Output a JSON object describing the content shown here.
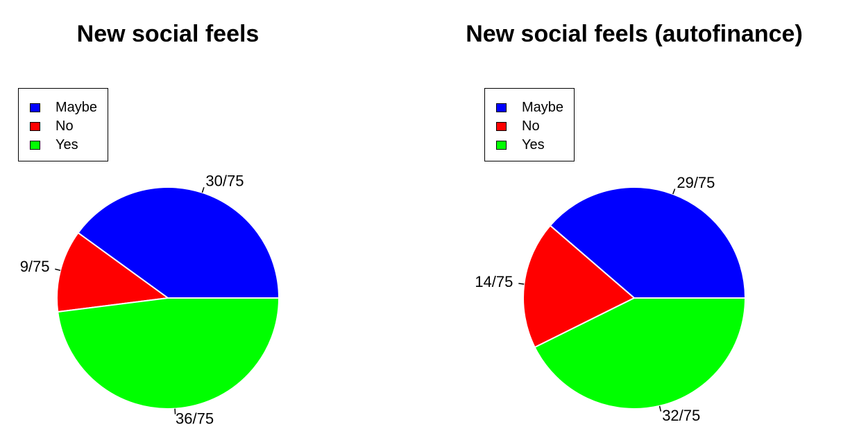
{
  "chart_data": [
    {
      "type": "pie",
      "title": "New social feels",
      "categories": [
        "Maybe",
        "No",
        "Yes"
      ],
      "values": [
        30,
        9,
        36
      ],
      "labels": [
        "30/75",
        "9/75",
        "36/75"
      ],
      "colors": [
        "#0000ff",
        "#ff0000",
        "#00ff00"
      ],
      "legend": {
        "position": "top-left",
        "entries": [
          "Maybe",
          "No",
          "Yes"
        ]
      }
    },
    {
      "type": "pie",
      "title": "New social feels (autofinance)",
      "categories": [
        "Maybe",
        "No",
        "Yes"
      ],
      "values": [
        29,
        14,
        32
      ],
      "labels": [
        "29/75",
        "14/75",
        "32/75"
      ],
      "colors": [
        "#0000ff",
        "#ff0000",
        "#00ff00"
      ],
      "legend": {
        "position": "top-left",
        "entries": [
          "Maybe",
          "No",
          "Yes"
        ]
      }
    }
  ]
}
